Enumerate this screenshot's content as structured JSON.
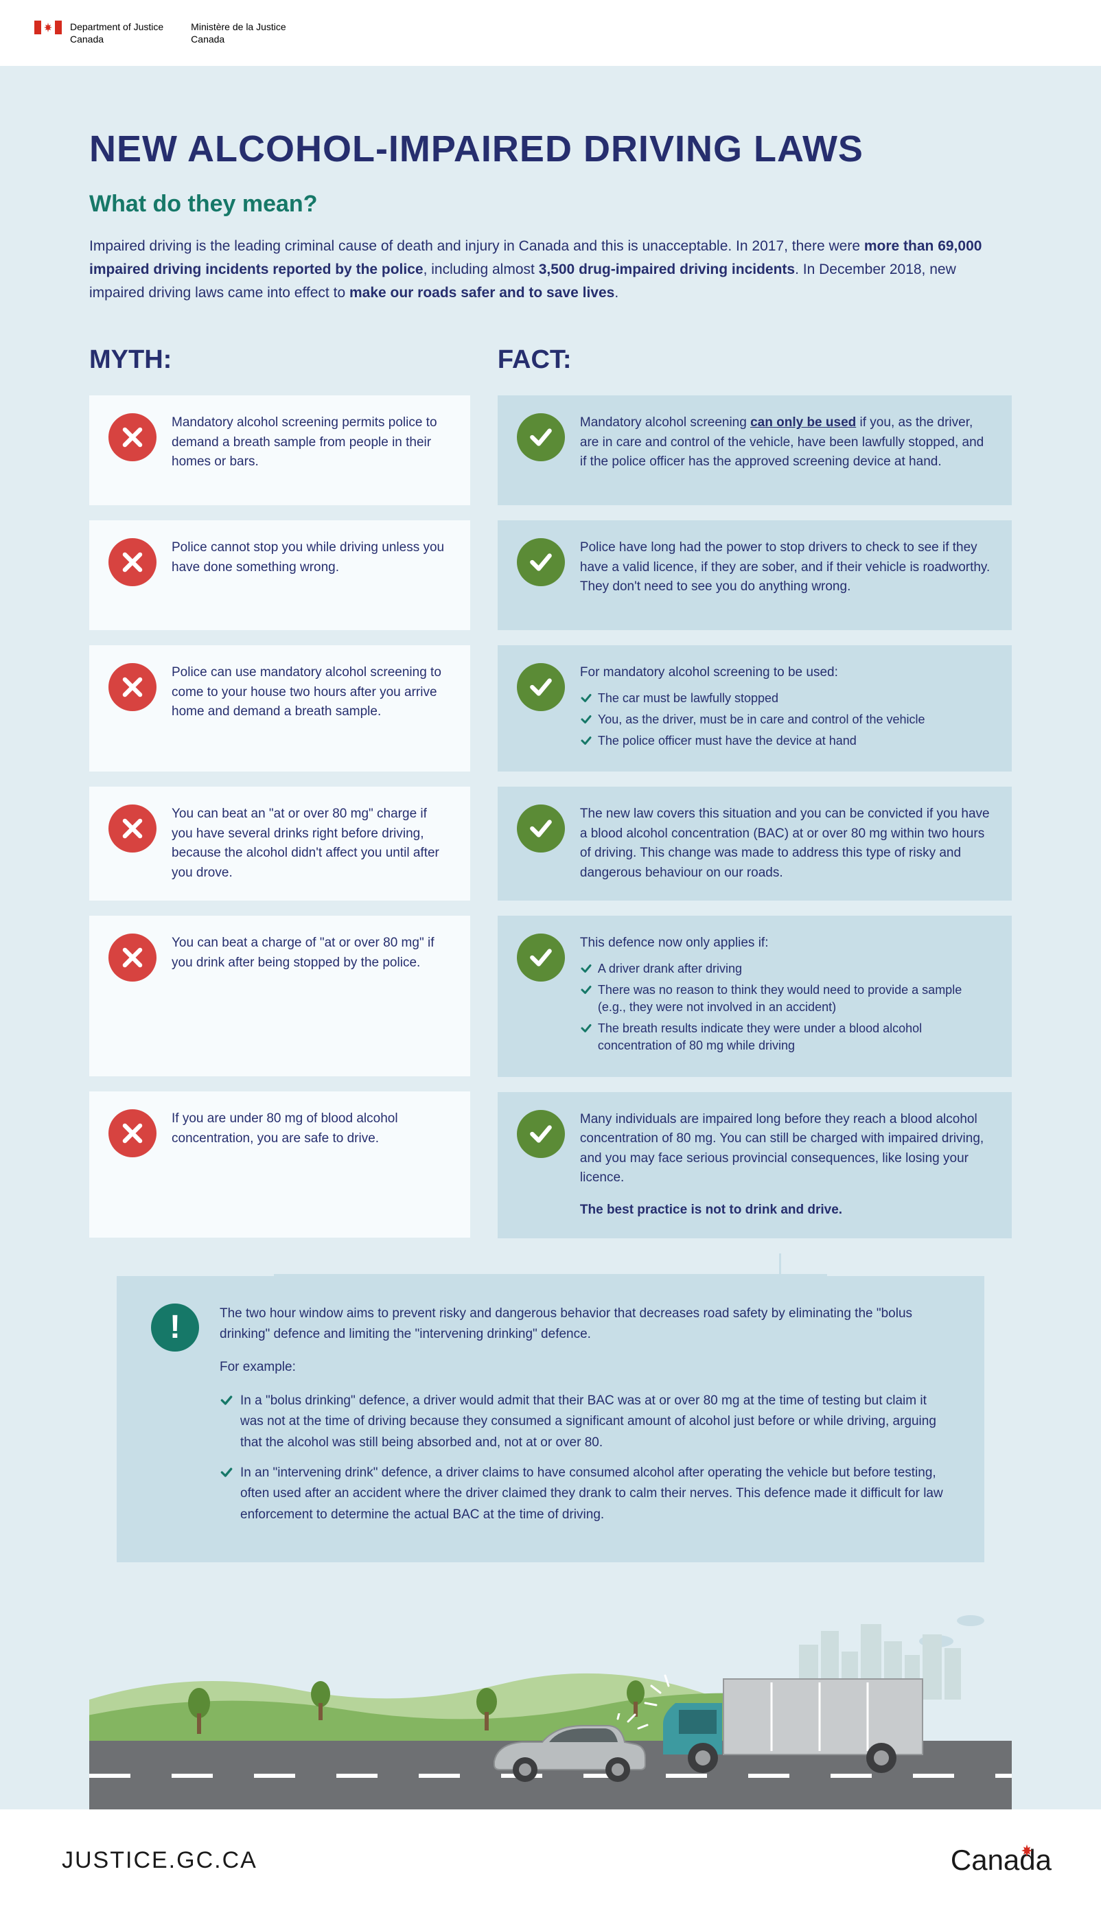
{
  "header": {
    "dept_en": "Department of Justice\nCanada",
    "dept_fr": "Ministère de la Justice\nCanada"
  },
  "title": "NEW ALCOHOL-IMPAIRED DRIVING LAWS",
  "subtitle": "What do they mean?",
  "intro_parts": {
    "p1": "Impaired driving is the leading criminal cause of death and injury in Canada and this is unacceptable. In 2017, there were ",
    "b1": "more than 69,000 impaired driving incidents reported by the police",
    "p2": ", including almost ",
    "b2": "3,500 drug-impaired driving incidents",
    "p3": ". In December 2018, new impaired driving laws came into effect to ",
    "b3": "make our roads safer and to save lives",
    "p4": "."
  },
  "myth_title": "MYTH:",
  "fact_title": "FACT:",
  "rows": [
    {
      "myth": "Mandatory alcohol screening permits police to demand a breath sample from people in their homes or bars.",
      "fact_pre": "Mandatory alcohol screening ",
      "fact_u": "can only be used",
      "fact_post": " if you, as the driver, are in care and control of the vehicle, have been lawfully stopped, and if the police officer has the approved screening device at hand."
    },
    {
      "myth": "Police cannot stop you while driving unless you have done something wrong.",
      "fact": "Police have long had the power to stop drivers to check to see if they have a valid licence, if they are sober, and if their vehicle is roadworthy. They don't need to see you do anything wrong."
    },
    {
      "myth": "Police can use mandatory alcohol screening to come to your house two hours after you arrive home and demand a breath sample.",
      "fact_lead": "For mandatory alcohol screening to be used:",
      "bullets": [
        "The car must be lawfully stopped",
        "You, as the driver, must be in care and control of the vehicle",
        "The police officer must have the device at hand"
      ]
    },
    {
      "myth": "You can beat an \"at or over 80 mg\" charge if you have several drinks right before driving, because the alcohol didn't affect you until after you drove.",
      "fact": "The new law covers this situation and you can be convicted if you have a blood alcohol concentration (BAC) at or over 80 mg within two hours of driving. This change was made to address this type of risky and dangerous behaviour on our roads."
    },
    {
      "myth": "You can beat a charge of \"at or over 80 mg\" if you drink after being stopped by the police.",
      "fact_lead": "This defence now only applies if:",
      "bullets": [
        "A driver drank after driving",
        "There was no reason to think they would need to provide a sample (e.g., they were not involved in an accident)",
        "The breath results indicate they were under a blood alcohol concentration of 80 mg while driving"
      ]
    },
    {
      "myth": "If you are under 80 mg of blood alcohol concentration, you are safe to drive.",
      "fact": "Many individuals are impaired long before they reach a blood alcohol concentration of 80 mg. You can still be charged with impaired driving, and you may face serious provincial consequences, like losing your licence.",
      "fact_strong": "The best practice is not to drink and drive."
    }
  ],
  "info": {
    "lead": "The two hour window aims to prevent risky and dangerous behavior that decreases road safety by eliminating the \"bolus drinking\" defence and limiting the \"intervening drinking\" defence.",
    "example_label": "For example:",
    "bullets": [
      "In a \"bolus drinking\" defence, a driver would admit that their BAC was at or over 80 mg at the time of testing but claim it was not at the time of driving because they consumed a significant amount of alcohol just before or while driving, arguing that the alcohol was still being absorbed and, not at or over 80.",
      "In an \"intervening drink\" defence, a driver claims to have consumed alcohol after operating the vehicle but before testing, often used after an accident where the driver claimed they drank to calm their nerves. This defence made it difficult for law enforcement to determine the actual BAC at the time of driving."
    ]
  },
  "footer": {
    "url": "JUSTICE.GC.CA",
    "wordmark": "Canada"
  },
  "colors": {
    "bg": "#e1edf2",
    "title": "#262e6e",
    "subtitle": "#167868",
    "myth_card": "#f7fbfd",
    "fact_card": "#c8dee7",
    "x_circle": "#d74340",
    "check_circle": "#5b8b36",
    "road": "#6e7073",
    "hill_light": "#b6d49a",
    "hill_dark": "#84b561",
    "tree": "#5b8b36"
  }
}
